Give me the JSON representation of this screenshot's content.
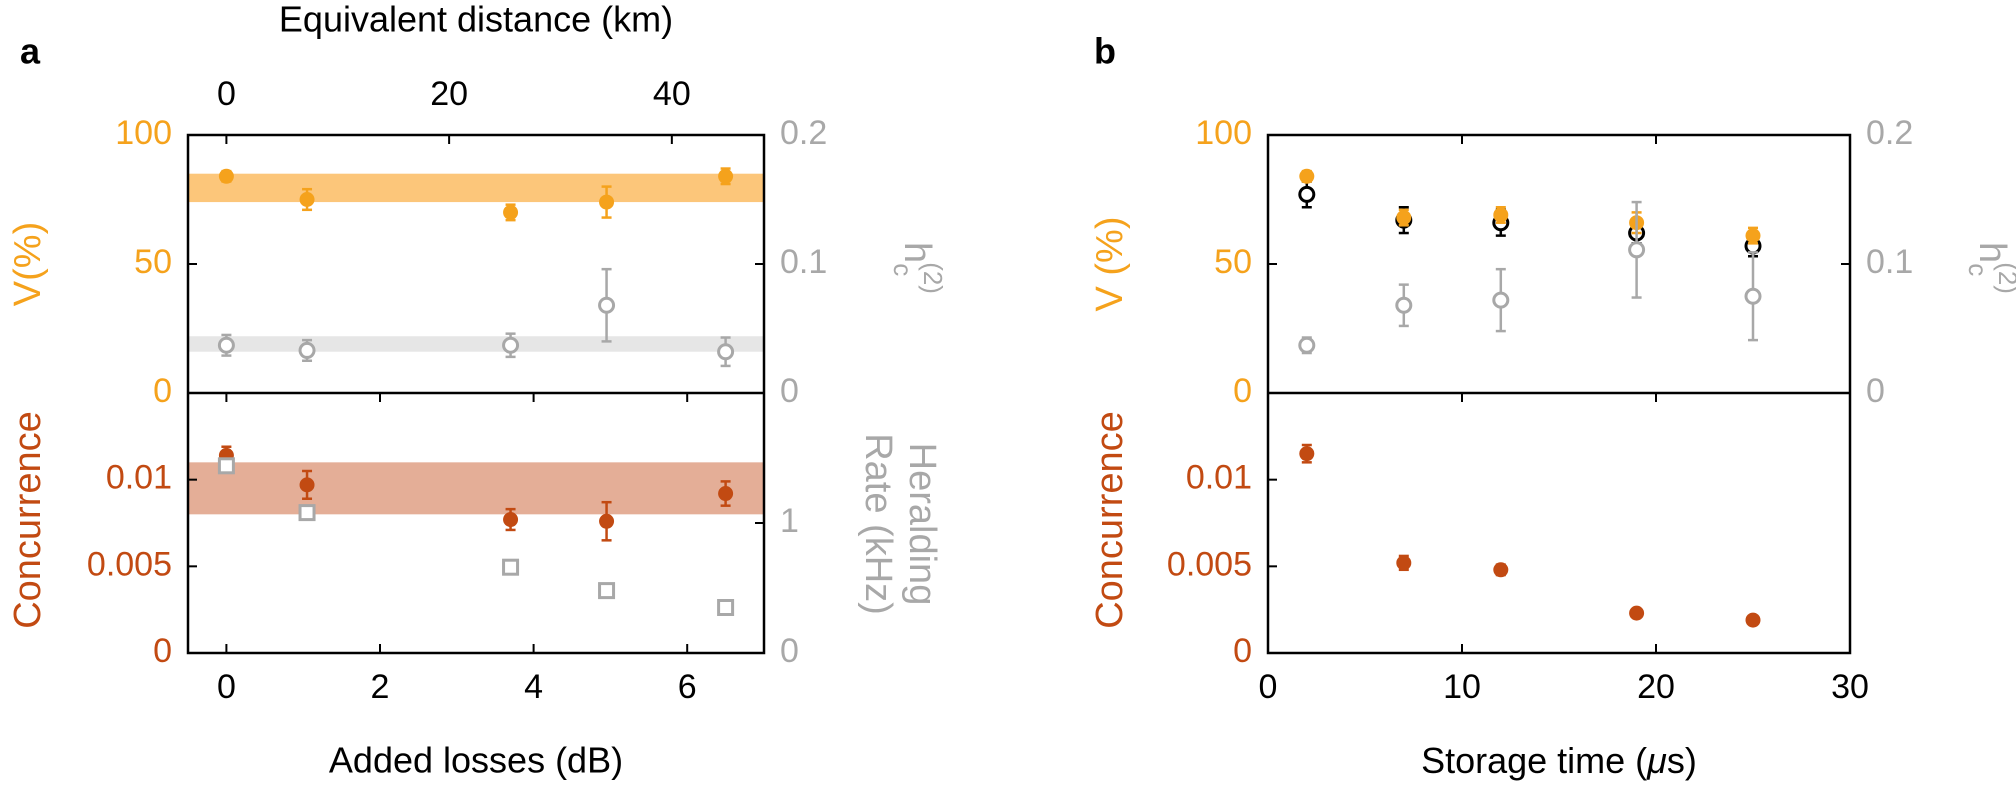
{
  "colors": {
    "orange": "#F5A21C",
    "rust": "#C24A12",
    "gray": "#A8A8A8",
    "black": "#000000",
    "orange_band": "#FCC67A",
    "rust_band": "#E4AE97",
    "gray_band": "#E6E6E6"
  },
  "panels": {
    "a": "a",
    "b": "b"
  },
  "chart_data": [
    {
      "type": "scatter",
      "panel": "a",
      "position": "top",
      "xlabel": "Added losses (dB)",
      "x2label": "Equivalent distance (km)",
      "ylabel": "V(%)",
      "y2label": "h",
      "y2label_sub": "c",
      "y2label_sup": "(2)",
      "xlim": [
        -0.5,
        7
      ],
      "x2_ticks": [
        0,
        20,
        40
      ],
      "x2_tick_positions_db": [
        0,
        2.9,
        5.8
      ],
      "ylim": [
        0,
        100
      ],
      "y_ticks": [
        0,
        50,
        100
      ],
      "y2lim": [
        0,
        0.2
      ],
      "y2_ticks": [
        0,
        0.1,
        0.2
      ],
      "bands": [
        {
          "axis": "y",
          "from": 74,
          "to": 85,
          "color": "orange_band"
        },
        {
          "axis": "y2",
          "from": 0.032,
          "to": 0.044,
          "color": "gray_band"
        }
      ],
      "series": [
        {
          "axis": "y",
          "marker": "filled",
          "color": "orange",
          "points": [
            {
              "x": 0,
              "y": 84,
              "err": 2
            },
            {
              "x": 1.05,
              "y": 75,
              "err": 4
            },
            {
              "x": 3.7,
              "y": 70,
              "err": 3
            },
            {
              "x": 4.95,
              "y": 74,
              "err": 6
            },
            {
              "x": 6.5,
              "y": 84,
              "err": 3
            }
          ]
        },
        {
          "axis": "y2",
          "marker": "open",
          "color": "gray",
          "points": [
            {
              "x": 0,
              "y": 0.037,
              "err": 0.008
            },
            {
              "x": 1.05,
              "y": 0.033,
              "err": 0.008
            },
            {
              "x": 3.7,
              "y": 0.037,
              "err": 0.009
            },
            {
              "x": 4.95,
              "y": 0.068,
              "err": 0.028
            },
            {
              "x": 6.5,
              "y": 0.032,
              "err": 0.011
            }
          ]
        }
      ]
    },
    {
      "type": "scatter",
      "panel": "a",
      "position": "bottom",
      "ylabel": "Concurrence",
      "y2label_1": "Heralding",
      "y2label_2": "Rate (kHz)",
      "xlim": [
        -0.5,
        7
      ],
      "x_ticks": [
        0,
        2,
        4,
        6
      ],
      "ylim": [
        0,
        0.015
      ],
      "y_ticks": [
        0,
        0.005,
        0.01
      ],
      "y_tick_labels": [
        "0",
        "0.005",
        "0.01"
      ],
      "y2lim": [
        0,
        2
      ],
      "y2_ticks": [
        0,
        1
      ],
      "bands": [
        {
          "axis": "y",
          "from": 0.008,
          "to": 0.011,
          "color": "rust_band"
        }
      ],
      "series": [
        {
          "axis": "y",
          "marker": "filled",
          "color": "rust",
          "points": [
            {
              "x": 0,
              "y": 0.0114,
              "err": 0.0005
            },
            {
              "x": 1.05,
              "y": 0.0097,
              "err": 0.0008
            },
            {
              "x": 3.7,
              "y": 0.0077,
              "err": 0.0006
            },
            {
              "x": 4.95,
              "y": 0.0076,
              "err": 0.0011
            },
            {
              "x": 6.5,
              "y": 0.0092,
              "err": 0.0007
            }
          ]
        },
        {
          "axis": "y2",
          "marker": "square",
          "color": "gray",
          "points": [
            {
              "x": 0,
              "y": 1.44
            },
            {
              "x": 1.05,
              "y": 1.08
            },
            {
              "x": 3.7,
              "y": 0.66
            },
            {
              "x": 4.95,
              "y": 0.48
            },
            {
              "x": 6.5,
              "y": 0.35
            }
          ]
        }
      ]
    },
    {
      "type": "scatter",
      "panel": "b",
      "position": "top",
      "ylabel": "V (%)",
      "y2label": "h",
      "y2label_sub": "c",
      "y2label_sup": "(2)",
      "xlim": [
        0,
        30
      ],
      "ylim": [
        0,
        100
      ],
      "y_ticks": [
        0,
        50,
        100
      ],
      "y2lim": [
        0,
        0.2
      ],
      "y2_ticks": [
        0,
        0.1,
        0.2
      ],
      "series": [
        {
          "axis": "y",
          "marker": "open",
          "color": "black",
          "points": [
            {
              "x": 2,
              "y": 77,
              "err": 5
            },
            {
              "x": 7,
              "y": 67,
              "err": 5
            },
            {
              "x": 12,
              "y": 66,
              "err": 5
            },
            {
              "x": 19,
              "y": 62,
              "err": 4
            },
            {
              "x": 25,
              "y": 57,
              "err": 4
            }
          ]
        },
        {
          "axis": "y",
          "marker": "filled",
          "color": "orange",
          "points": [
            {
              "x": 2,
              "y": 84,
              "err": 2
            },
            {
              "x": 7,
              "y": 68,
              "err": 3
            },
            {
              "x": 12,
              "y": 69,
              "err": 3
            },
            {
              "x": 19,
              "y": 66,
              "err": 4
            },
            {
              "x": 25,
              "y": 61,
              "err": 3
            }
          ]
        },
        {
          "axis": "y2",
          "marker": "open",
          "color": "gray",
          "points": [
            {
              "x": 2,
              "y": 0.037,
              "err": 0.006
            },
            {
              "x": 7,
              "y": 0.068,
              "err": 0.016
            },
            {
              "x": 12,
              "y": 0.072,
              "err": 0.024
            },
            {
              "x": 19,
              "y": 0.111,
              "err": 0.037
            },
            {
              "x": 25,
              "y": 0.075,
              "err": 0.034
            }
          ]
        }
      ]
    },
    {
      "type": "scatter",
      "panel": "b",
      "position": "bottom",
      "xlabel": "Storage time (",
      "xlabel_mu": "μ",
      "xlabel_end": "s)",
      "ylabel": "Concurrence",
      "xlim": [
        0,
        30
      ],
      "x_ticks": [
        0,
        10,
        20,
        30
      ],
      "ylim": [
        0,
        0.015
      ],
      "y_ticks": [
        0,
        0.005,
        0.01
      ],
      "y_tick_labels": [
        "0",
        "0.005",
        "0.01"
      ],
      "series": [
        {
          "axis": "y",
          "marker": "filled",
          "color": "rust",
          "points": [
            {
              "x": 2,
              "y": 0.0115,
              "err": 0.0005
            },
            {
              "x": 7,
              "y": 0.0052,
              "err": 0.0004
            },
            {
              "x": 12,
              "y": 0.0048,
              "err": 0.0003
            },
            {
              "x": 19,
              "y": 0.0023,
              "err": 0.0002
            },
            {
              "x": 25,
              "y": 0.0019,
              "err": 0.0002
            }
          ]
        }
      ]
    }
  ]
}
